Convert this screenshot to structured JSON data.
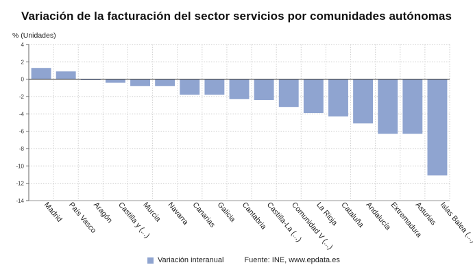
{
  "chart_data": {
    "type": "bar",
    "title": "Variación de la facturación del sector servicios por comunidades autónomas",
    "ylabel": "% (Unidades)",
    "ylim": [
      -14,
      4
    ],
    "yticks": [
      4,
      2,
      0,
      -2,
      -4,
      -6,
      -8,
      -10,
      -12,
      -14
    ],
    "grid": true,
    "legend_position": "bottom",
    "categories": [
      "Madrid",
      "País Vasco",
      "Aragón",
      "Castilla y (...)",
      "Murcia",
      "Navarra",
      "Canarias",
      "Galicia",
      "Cantabria",
      "Castilla-La (...)",
      "Comunidad V (...)",
      "La Rioja",
      "Cataluña",
      "Andalucía",
      "Extremadura",
      "Asturias",
      "Islas Balea (...)"
    ],
    "series": [
      {
        "name": "Variación interanual",
        "color": "#8fa4d0",
        "values": [
          1.3,
          0.9,
          -0.1,
          -0.4,
          -0.8,
          -0.8,
          -1.8,
          -1.8,
          -2.3,
          -2.4,
          -3.2,
          -3.9,
          -4.3,
          -5.1,
          -6.3,
          -6.3,
          -11.1
        ]
      }
    ]
  },
  "source": "Fuente: INE, www.epdata.es"
}
